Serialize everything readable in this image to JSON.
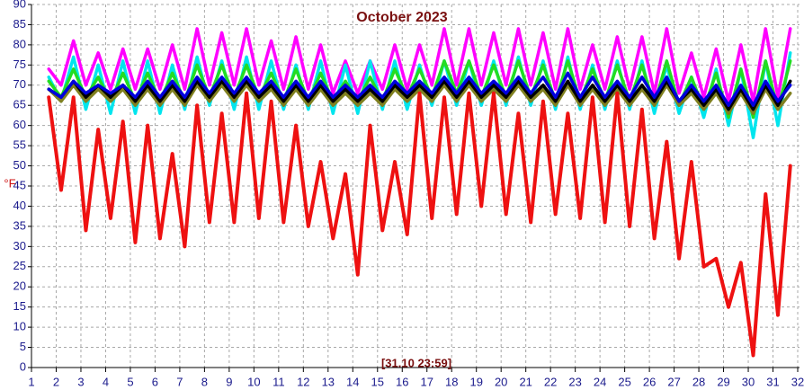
{
  "chart_data": {
    "type": "line",
    "title": "October 2023",
    "y_label": "°F",
    "annotation": "[31.10 23:59]",
    "xlim": [
      1,
      32
    ],
    "xticks": [
      1,
      2,
      3,
      4,
      5,
      6,
      7,
      8,
      9,
      10,
      11,
      12,
      13,
      14,
      15,
      16,
      17,
      18,
      19,
      20,
      21,
      22,
      23,
      24,
      25,
      26,
      27,
      28,
      29,
      30,
      31,
      32
    ],
    "ylim": [
      0,
      90
    ],
    "yticks": [
      0,
      5,
      10,
      15,
      20,
      25,
      30,
      35,
      40,
      45,
      50,
      55,
      60,
      65,
      70,
      75,
      80,
      85,
      90
    ],
    "grid": true,
    "x": [
      1.7,
      2.2,
      2.7,
      3.2,
      3.7,
      4.2,
      4.7,
      5.2,
      5.7,
      6.2,
      6.7,
      7.2,
      7.7,
      8.2,
      8.7,
      9.2,
      9.7,
      10.2,
      10.7,
      11.2,
      11.7,
      12.2,
      12.7,
      13.2,
      13.7,
      14.2,
      14.7,
      15.2,
      15.7,
      16.2,
      16.7,
      17.2,
      17.7,
      18.2,
      18.7,
      19.2,
      19.7,
      20.2,
      20.7,
      21.2,
      21.7,
      22.2,
      22.7,
      23.2,
      23.7,
      24.2,
      24.7,
      25.2,
      25.7,
      26.2,
      26.7,
      27.2,
      27.7,
      28.2,
      28.7,
      29.2,
      29.7,
      30.2,
      30.7,
      31.2,
      31.7
    ],
    "series": [
      {
        "color": "#ff00ff",
        "values": [
          74,
          70,
          81,
          70,
          78,
          69,
          79,
          69,
          79,
          69,
          80,
          69,
          84,
          70,
          83,
          70,
          84,
          70,
          81,
          69,
          82,
          69,
          80,
          68,
          76,
          68,
          76,
          69,
          80,
          69,
          80,
          70,
          84,
          70,
          84,
          70,
          83,
          70,
          84,
          70,
          83,
          69,
          84,
          69,
          80,
          69,
          82,
          69,
          82,
          68,
          84,
          68,
          78,
          67,
          79,
          66,
          80,
          66,
          84,
          67,
          84
        ]
      },
      {
        "color": "#00e5ee",
        "values": [
          72,
          66,
          77,
          64,
          75,
          63,
          76,
          63,
          76,
          63,
          75,
          64,
          77,
          65,
          76,
          64,
          77,
          64,
          76,
          64,
          75,
          64,
          76,
          63,
          75,
          63,
          76,
          64,
          76,
          64,
          75,
          65,
          76,
          65,
          76,
          65,
          76,
          65,
          77,
          65,
          76,
          64,
          77,
          64,
          75,
          64,
          76,
          64,
          76,
          63,
          75,
          63,
          72,
          62,
          74,
          60,
          74,
          57,
          76,
          60,
          78
        ]
      },
      {
        "color": "#22dd22",
        "values": [
          71,
          67,
          74,
          67,
          72,
          66,
          73,
          66,
          73,
          66,
          73,
          66,
          75,
          67,
          75,
          67,
          75,
          67,
          73,
          66,
          74,
          66,
          73,
          66,
          71,
          66,
          72,
          66,
          74,
          67,
          74,
          67,
          76,
          68,
          76,
          67,
          75,
          67,
          76,
          67,
          75,
          66,
          76,
          66,
          74,
          66,
          75,
          66,
          75,
          65,
          76,
          65,
          72,
          64,
          73,
          62,
          74,
          62,
          76,
          64,
          76
        ]
      },
      {
        "color": "#808020",
        "values": [
          69,
          66,
          70,
          66,
          69,
          66,
          69,
          65,
          69,
          65,
          69,
          65,
          70,
          66,
          70,
          66,
          70,
          66,
          69,
          65,
          69,
          65,
          69,
          65,
          68,
          65,
          68,
          65,
          69,
          66,
          69,
          66,
          70,
          66,
          70,
          66,
          69,
          66,
          70,
          66,
          69,
          65,
          70,
          65,
          69,
          65,
          69,
          65,
          69,
          65,
          70,
          65,
          68,
          64,
          68,
          63,
          68,
          63,
          69,
          64,
          68
        ]
      },
      {
        "color": "#000000",
        "values": [
          69,
          67,
          71,
          67,
          70,
          67,
          70,
          66,
          70,
          66,
          70,
          66,
          71,
          67,
          71,
          67,
          71,
          67,
          70,
          66,
          70,
          66,
          70,
          66,
          69,
          66,
          69,
          66,
          70,
          67,
          70,
          67,
          71,
          67,
          71,
          67,
          70,
          67,
          71,
          67,
          70,
          66,
          71,
          66,
          70,
          66,
          70,
          66,
          70,
          66,
          71,
          66,
          69,
          65,
          69,
          64,
          69,
          64,
          70,
          65,
          71
        ]
      },
      {
        "color": "#0000dd",
        "values": [
          69,
          67,
          71,
          68,
          70,
          68,
          70,
          67,
          71,
          67,
          71,
          67,
          72,
          68,
          72,
          68,
          72,
          68,
          71,
          67,
          71,
          67,
          71,
          67,
          70,
          67,
          70,
          67,
          71,
          68,
          71,
          68,
          72,
          68,
          72,
          68,
          71,
          68,
          72,
          68,
          72,
          67,
          73,
          67,
          72,
          67,
          71,
          67,
          72,
          67,
          72,
          66,
          70,
          66,
          70,
          65,
          70,
          65,
          71,
          66,
          70
        ]
      },
      {
        "color": "#ee1111",
        "values": [
          67,
          44,
          67,
          34,
          59,
          37,
          61,
          31,
          60,
          32,
          53,
          30,
          65,
          36,
          63,
          36,
          68,
          37,
          66,
          36,
          60,
          35,
          51,
          32,
          48,
          23,
          60,
          34,
          51,
          33,
          68,
          37,
          67,
          38,
          68,
          40,
          68,
          38,
          63,
          36,
          66,
          38,
          63,
          37,
          67,
          36,
          68,
          35,
          64,
          32,
          56,
          27,
          51,
          25,
          27,
          15,
          26,
          3,
          43,
          13,
          50
        ]
      }
    ]
  }
}
